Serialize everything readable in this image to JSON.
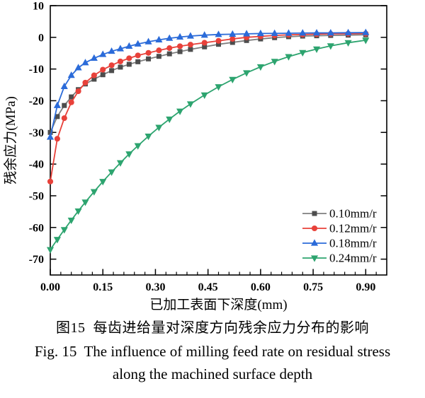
{
  "figure": {
    "caption_cn": "图15  每齿进给量对深度方向残余应力分布的影响",
    "caption_en_line1": "Fig. 15  The influence of milling feed rate on residual stress",
    "caption_en_line2": "along the machined surface depth"
  },
  "chart_data": {
    "type": "line",
    "title": "",
    "xlabel": "已加工表面下深度(mm)",
    "ylabel": "残余应力(MPa)",
    "xlim": [
      0,
      0.96
    ],
    "ylim": [
      -75,
      10
    ],
    "grid": false,
    "legend_position": "inside bottom-right",
    "x_major_ticks": [
      0,
      0.15,
      0.3,
      0.45,
      0.6,
      0.75,
      0.9
    ],
    "x_tick_labels": [
      "0.00",
      "0.15",
      "0.30",
      "0.45",
      "0.60",
      "0.75",
      "0.90"
    ],
    "x_minor_step": 0.03,
    "y_major_ticks": [
      10,
      0,
      -10,
      -20,
      -30,
      -40,
      -50,
      -60,
      -70
    ],
    "x": [
      0,
      0.02,
      0.04,
      0.06,
      0.08,
      0.1,
      0.125,
      0.15,
      0.175,
      0.2,
      0.225,
      0.25,
      0.28,
      0.31,
      0.34,
      0.37,
      0.4,
      0.44,
      0.48,
      0.52,
      0.56,
      0.6,
      0.64,
      0.68,
      0.72,
      0.76,
      0.8,
      0.85,
      0.9
    ],
    "series": [
      {
        "name": "0.10mm/r",
        "marker": "square",
        "marker_color": "#4d4d4d",
        "line_color": "#7f7f7f",
        "values": [
          -30,
          -25,
          -21.5,
          -18.8,
          -16.5,
          -14.7,
          -13.2,
          -11.8,
          -10.5,
          -9.4,
          -8.5,
          -7.7,
          -6.8,
          -6.0,
          -5.2,
          -4.5,
          -3.8,
          -3.0,
          -2.2,
          -1.6,
          -1.0,
          -0.5,
          -0.1,
          0.2,
          0.4,
          0.5,
          0.6,
          0.7,
          0.8
        ]
      },
      {
        "name": "0.12mm/r",
        "marker": "circle",
        "marker_color": "#e8413a",
        "line_color": "#e8413a",
        "values": [
          -45.5,
          -32,
          -25.5,
          -20.5,
          -17,
          -14.3,
          -12,
          -10.2,
          -8.8,
          -7.6,
          -6.6,
          -5.7,
          -4.9,
          -4.1,
          -3.4,
          -2.8,
          -2.3,
          -1.7,
          -1.1,
          -0.5,
          0.0,
          0.3,
          0.6,
          0.8,
          0.9,
          1.0,
          1.1,
          1.15,
          1.2
        ]
      },
      {
        "name": "0.18mm/r",
        "marker": "triangle-up",
        "marker_color": "#2b6bd9",
        "line_color": "#2b6bd9",
        "values": [
          -31.5,
          -21.5,
          -15.5,
          -12,
          -9.6,
          -8.0,
          -6.6,
          -5.4,
          -4.4,
          -3.6,
          -2.8,
          -2.1,
          -1.4,
          -0.8,
          -0.3,
          0.1,
          0.4,
          0.7,
          0.9,
          1.0,
          1.1,
          1.2,
          1.25,
          1.3,
          1.35,
          1.4,
          1.4,
          1.45,
          1.5
        ]
      },
      {
        "name": "0.24mm/r",
        "marker": "triangle-down",
        "marker_color": "#2da46f",
        "line_color": "#2da46f",
        "values": [
          -67,
          -63.8,
          -60.7,
          -57.7,
          -54.8,
          -52,
          -48.7,
          -45.5,
          -42.5,
          -39.6,
          -36.8,
          -34.2,
          -31.2,
          -28.4,
          -25.8,
          -23.3,
          -21,
          -18.2,
          -15.6,
          -13.3,
          -11.2,
          -9.3,
          -7.6,
          -6.1,
          -4.8,
          -3.7,
          -2.7,
          -1.7,
          -0.9
        ]
      }
    ]
  }
}
